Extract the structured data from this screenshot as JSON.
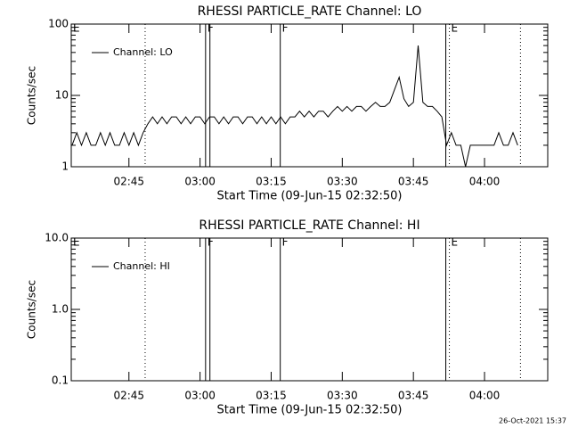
{
  "chart_data": [
    {
      "type": "line",
      "title": "RHESSI PARTICLE_RATE Channel: LO",
      "ylabel": "Counts/sec",
      "xlabel": "Start Time (09-Jun-15 02:32:50)",
      "xlim": [
        "02:32:50",
        "04:13:20"
      ],
      "xticks": [
        "02:45",
        "03:00",
        "03:15",
        "03:30",
        "03:45",
        "04:00"
      ],
      "ylim": [
        1,
        100
      ],
      "yticks": [
        1,
        10,
        100
      ],
      "log_y": true,
      "legend": "upper left",
      "annotations": [
        {
          "x": "02:32:50",
          "label": "E",
          "style": "none"
        },
        {
          "x": "02:48:25",
          "label": null,
          "style": "dotted"
        },
        {
          "x": "03:01:10",
          "label": "F",
          "style": "solid"
        },
        {
          "x": "03:02:05",
          "label": null,
          "style": "solid"
        },
        {
          "x": "03:16:55",
          "label": "F",
          "style": "solid"
        },
        {
          "x": "03:51:50",
          "label": null,
          "style": "solid"
        },
        {
          "x": "03:52:35",
          "label": "E",
          "style": "dotted"
        },
        {
          "x": "04:07:35",
          "label": null,
          "style": "dotted"
        }
      ],
      "series": [
        {
          "name": "Channel: LO",
          "color": "#000000",
          "x": [
            "02:33",
            "02:34",
            "02:35",
            "02:36",
            "02:37",
            "02:38",
            "02:39",
            "02:40",
            "02:41",
            "02:42",
            "02:43",
            "02:44",
            "02:45",
            "02:46",
            "02:47",
            "02:48",
            "02:49",
            "02:50",
            "02:51",
            "02:52",
            "02:53",
            "02:54",
            "02:55",
            "02:56",
            "02:57",
            "02:58",
            "02:59",
            "03:00",
            "03:01",
            "03:02",
            "03:03",
            "03:04",
            "03:05",
            "03:06",
            "03:07",
            "03:08",
            "03:09",
            "03:10",
            "03:11",
            "03:12",
            "03:13",
            "03:14",
            "03:15",
            "03:16",
            "03:17",
            "03:18",
            "03:19",
            "03:20",
            "03:21",
            "03:22",
            "03:23",
            "03:24",
            "03:25",
            "03:26",
            "03:27",
            "03:28",
            "03:29",
            "03:30",
            "03:31",
            "03:32",
            "03:33",
            "03:34",
            "03:35",
            "03:36",
            "03:37",
            "03:38",
            "03:39",
            "03:40",
            "03:41",
            "03:42",
            "03:43",
            "03:44",
            "03:45",
            "03:46",
            "03:47",
            "03:48",
            "03:49",
            "03:50",
            "03:51",
            "03:52",
            "03:53",
            "03:54",
            "03:55",
            "03:56",
            "03:57",
            "03:58",
            "03:59",
            "04:00",
            "04:01",
            "04:02",
            "04:03",
            "04:04",
            "04:05",
            "04:06",
            "04:07"
          ],
          "values": [
            2,
            3,
            2,
            3,
            2,
            2,
            3,
            2,
            3,
            2,
            2,
            3,
            2,
            3,
            2,
            3,
            4,
            5,
            4,
            5,
            4,
            5,
            5,
            4,
            5,
            4,
            5,
            5,
            4,
            5,
            5,
            4,
            5,
            4,
            5,
            5,
            4,
            5,
            5,
            4,
            5,
            4,
            5,
            4,
            5,
            4,
            5,
            5,
            6,
            5,
            6,
            5,
            6,
            6,
            5,
            6,
            7,
            6,
            7,
            6,
            7,
            7,
            6,
            7,
            8,
            7,
            7,
            8,
            12,
            18,
            9,
            7,
            8,
            50,
            8,
            7,
            7,
            6,
            5,
            2,
            3,
            2,
            2,
            1,
            2,
            2,
            2,
            2,
            2,
            2,
            3,
            2,
            2,
            3,
            2
          ]
        }
      ]
    },
    {
      "type": "line",
      "title": "RHESSI PARTICLE_RATE Channel: HI",
      "ylabel": "Counts/sec",
      "xlabel": "Start Time (09-Jun-15 02:32:50)",
      "xlim": [
        "02:32:50",
        "04:13:20"
      ],
      "xticks": [
        "02:45",
        "03:00",
        "03:15",
        "03:30",
        "03:45",
        "04:00"
      ],
      "ylim": [
        0.1,
        10
      ],
      "yticks": [
        0.1,
        {
          "value": 1,
          "label": "1.0"
        },
        {
          "value": 10,
          "label": "10.0"
        }
      ],
      "log_y": true,
      "legend": "upper left",
      "annotations": [
        {
          "x": "02:32:50",
          "label": "E",
          "style": "none"
        },
        {
          "x": "02:48:25",
          "label": null,
          "style": "dotted"
        },
        {
          "x": "03:01:10",
          "label": "F",
          "style": "solid"
        },
        {
          "x": "03:02:05",
          "label": null,
          "style": "solid"
        },
        {
          "x": "03:16:55",
          "label": "F",
          "style": "solid"
        },
        {
          "x": "03:51:50",
          "label": null,
          "style": "solid"
        },
        {
          "x": "03:52:35",
          "label": "E",
          "style": "dotted"
        },
        {
          "x": "04:07:35",
          "label": null,
          "style": "dotted"
        }
      ],
      "series": [
        {
          "name": "Channel: HI",
          "color": "#000000",
          "x": [],
          "values": []
        }
      ]
    }
  ],
  "timestamp": "26-Oct-2021 15:37"
}
